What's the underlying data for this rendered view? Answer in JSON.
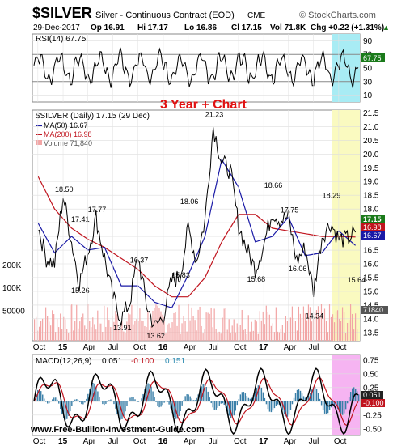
{
  "header": {
    "symbol": "$SILVER",
    "name": "Silver - Continuous Contract (EOD)",
    "exchange": "CME",
    "credit": "© StockCharts.com",
    "date": "29-Dec-2017",
    "open": "Op 16.91",
    "high": "Hi 17.17",
    "low": "Lo 16.86",
    "close": "Cl 17.15",
    "volume": "Vol 71.8K",
    "change": "Chg +0.22 (+1.31%)",
    "change_arrow": "▲"
  },
  "rsi_panel": {
    "label": "RSI(14) 67.75",
    "value_tag": "67.75",
    "ticks": [
      "90",
      "70",
      "50",
      "30",
      "10"
    ],
    "tick_values": [
      90,
      70,
      50,
      30,
      10
    ]
  },
  "price_panel": {
    "annotation": "3 Year + Chart",
    "legend": {
      "main": "$SILVER (Daily) 17.15 (29 Dec)",
      "ma50": "MA(50) 16.67",
      "ma200": "MA(200) 16.98",
      "volume": "Volume 71,840"
    },
    "value_tags": {
      "close": "17.15",
      "ma200": "16.98",
      "ma50": "16.67",
      "volume": "71840"
    },
    "volume_ticks": [
      "200K",
      "100K",
      "50000"
    ],
    "volume_tick_values": [
      200000,
      100000,
      50000
    ]
  },
  "macd_panel": {
    "label": "MACD(12,26,9)",
    "values": {
      "macd": "0.051",
      "signal": "-0.100",
      "hist": "0.151"
    },
    "value_tags": {
      "macd": "0.051",
      "signal": "-0.100"
    },
    "ticks": [
      "0.75",
      "0.50",
      "0.25",
      "0.00",
      "-0.25",
      "-0.50"
    ],
    "tick_values": [
      0.75,
      0.5,
      0.25,
      0.0,
      -0.25,
      -0.5
    ]
  },
  "watermark": "www.Free-Bullion-Investment-Guide.com",
  "colors": {
    "price": "#000000",
    "ma50": "#1a1aa6",
    "ma200": "#c0141e",
    "volume": "#f2a5a5",
    "rsi_highlight": "#a8ecf4",
    "price_highlight": "#fafac0",
    "macd_highlight": "#f6b4f2",
    "annotation": "#e01010",
    "up_tag": "#1a7a1a"
  },
  "chart_data": {
    "type": "line",
    "x_axis_labels": [
      "Oct",
      "15",
      "Apr",
      "Jul",
      "Oct",
      "16",
      "Apr",
      "Jul",
      "Oct",
      "17",
      "Apr",
      "Jul",
      "Oct"
    ],
    "x_axis_dates": [
      "2014-10",
      "2015-01",
      "2015-04",
      "2015-07",
      "2015-10",
      "2016-01",
      "2016-04",
      "2016-07",
      "2016-10",
      "2017-01",
      "2017-04",
      "2017-07",
      "2017-10"
    ],
    "price_axis": {
      "ticks": [
        "21.5",
        "21.0",
        "20.5",
        "20.0",
        "19.5",
        "19.0",
        "18.5",
        "18.0",
        "17.5",
        "17.0",
        "16.5",
        "16.0",
        "15.5",
        "15.0",
        "14.5",
        "14.0",
        "13.5"
      ],
      "tick_values": [
        21.5,
        21.0,
        20.5,
        20.0,
        19.5,
        19.0,
        18.5,
        18.0,
        17.5,
        17.0,
        16.5,
        16.0,
        15.5,
        15.0,
        14.5,
        14.0,
        13.5
      ],
      "range": [
        13.2,
        21.6
      ]
    },
    "price_annotations": [
      {
        "label": "18.50",
        "date": "2015-01",
        "value": 18.5
      },
      {
        "label": "17.77",
        "date": "2015-05",
        "value": 17.77
      },
      {
        "label": "17.41",
        "date": "2015-03",
        "value": 17.41
      },
      {
        "label": "15.26",
        "date": "2015-03",
        "value": 15.26
      },
      {
        "label": "16.37",
        "date": "2015-10",
        "value": 16.37
      },
      {
        "label": "13.91",
        "date": "2015-08",
        "value": 13.91
      },
      {
        "label": "13.62",
        "date": "2015-12",
        "value": 13.62
      },
      {
        "label": "18.06",
        "date": "2016-04",
        "value": 18.06
      },
      {
        "label": "15.83",
        "date": "2016-03",
        "value": 15.83
      },
      {
        "label": "21.23",
        "date": "2016-07",
        "value": 21.23
      },
      {
        "label": "15.68",
        "date": "2016-12",
        "value": 15.68
      },
      {
        "label": "18.66",
        "date": "2017-02",
        "value": 18.66
      },
      {
        "label": "17.75",
        "date": "2017-04",
        "value": 17.75
      },
      {
        "label": "16.06",
        "date": "2017-05",
        "value": 16.06
      },
      {
        "label": "14.34",
        "date": "2017-07",
        "value": 14.34
      },
      {
        "label": "18.29",
        "date": "2017-09",
        "value": 18.29
      },
      {
        "label": "15.64",
        "date": "2017-12",
        "value": 15.64
      }
    ],
    "series": [
      {
        "name": "$SILVER (Daily)",
        "x": [
          "2014-10",
          "2014-11",
          "2014-12",
          "2015-01",
          "2015-02",
          "2015-03",
          "2015-04",
          "2015-05",
          "2015-06",
          "2015-07",
          "2015-08",
          "2015-09",
          "2015-10",
          "2015-11",
          "2015-12",
          "2016-01",
          "2016-02",
          "2016-03",
          "2016-04",
          "2016-05",
          "2016-06",
          "2016-07",
          "2016-08",
          "2016-09",
          "2016-10",
          "2016-11",
          "2016-12",
          "2017-01",
          "2017-02",
          "2017-03",
          "2017-04",
          "2017-05",
          "2017-06",
          "2017-07",
          "2017-08",
          "2017-09",
          "2017-10",
          "2017-11",
          "2017-12"
        ],
        "values": [
          17.4,
          16.2,
          16.0,
          18.5,
          16.8,
          15.3,
          16.4,
          17.7,
          16.2,
          14.8,
          14.0,
          14.6,
          16.3,
          14.5,
          13.7,
          14.1,
          15.4,
          15.5,
          17.3,
          16.1,
          17.6,
          21.0,
          19.7,
          19.4,
          17.4,
          16.5,
          15.8,
          16.7,
          17.9,
          17.6,
          17.7,
          16.1,
          16.6,
          15.0,
          17.0,
          17.5,
          16.9,
          16.9,
          17.15
        ]
      },
      {
        "name": "MA(50)",
        "x": [
          "2014-10",
          "2014-12",
          "2015-02",
          "2015-04",
          "2015-06",
          "2015-08",
          "2015-10",
          "2015-12",
          "2016-02",
          "2016-04",
          "2016-06",
          "2016-08",
          "2016-10",
          "2016-12",
          "2017-02",
          "2017-04",
          "2017-06",
          "2017-08",
          "2017-10",
          "2017-12"
        ],
        "values": [
          17.5,
          16.4,
          17.0,
          16.5,
          16.6,
          15.2,
          15.2,
          14.6,
          14.4,
          15.6,
          17.0,
          19.8,
          18.8,
          16.8,
          17.0,
          17.7,
          16.3,
          16.4,
          17.2,
          16.67
        ]
      },
      {
        "name": "MA(200)",
        "x": [
          "2014-10",
          "2014-12",
          "2015-02",
          "2015-04",
          "2015-06",
          "2015-08",
          "2015-10",
          "2015-12",
          "2016-02",
          "2016-04",
          "2016-06",
          "2016-08",
          "2016-10",
          "2016-12",
          "2017-02",
          "2017-04",
          "2017-06",
          "2017-08",
          "2017-10",
          "2017-12"
        ],
        "values": [
          19.2,
          18.0,
          17.3,
          16.9,
          16.6,
          16.2,
          15.8,
          15.2,
          14.8,
          14.8,
          15.5,
          16.8,
          17.8,
          17.8,
          17.3,
          17.2,
          17.1,
          17.0,
          17.0,
          16.98
        ]
      }
    ]
  }
}
